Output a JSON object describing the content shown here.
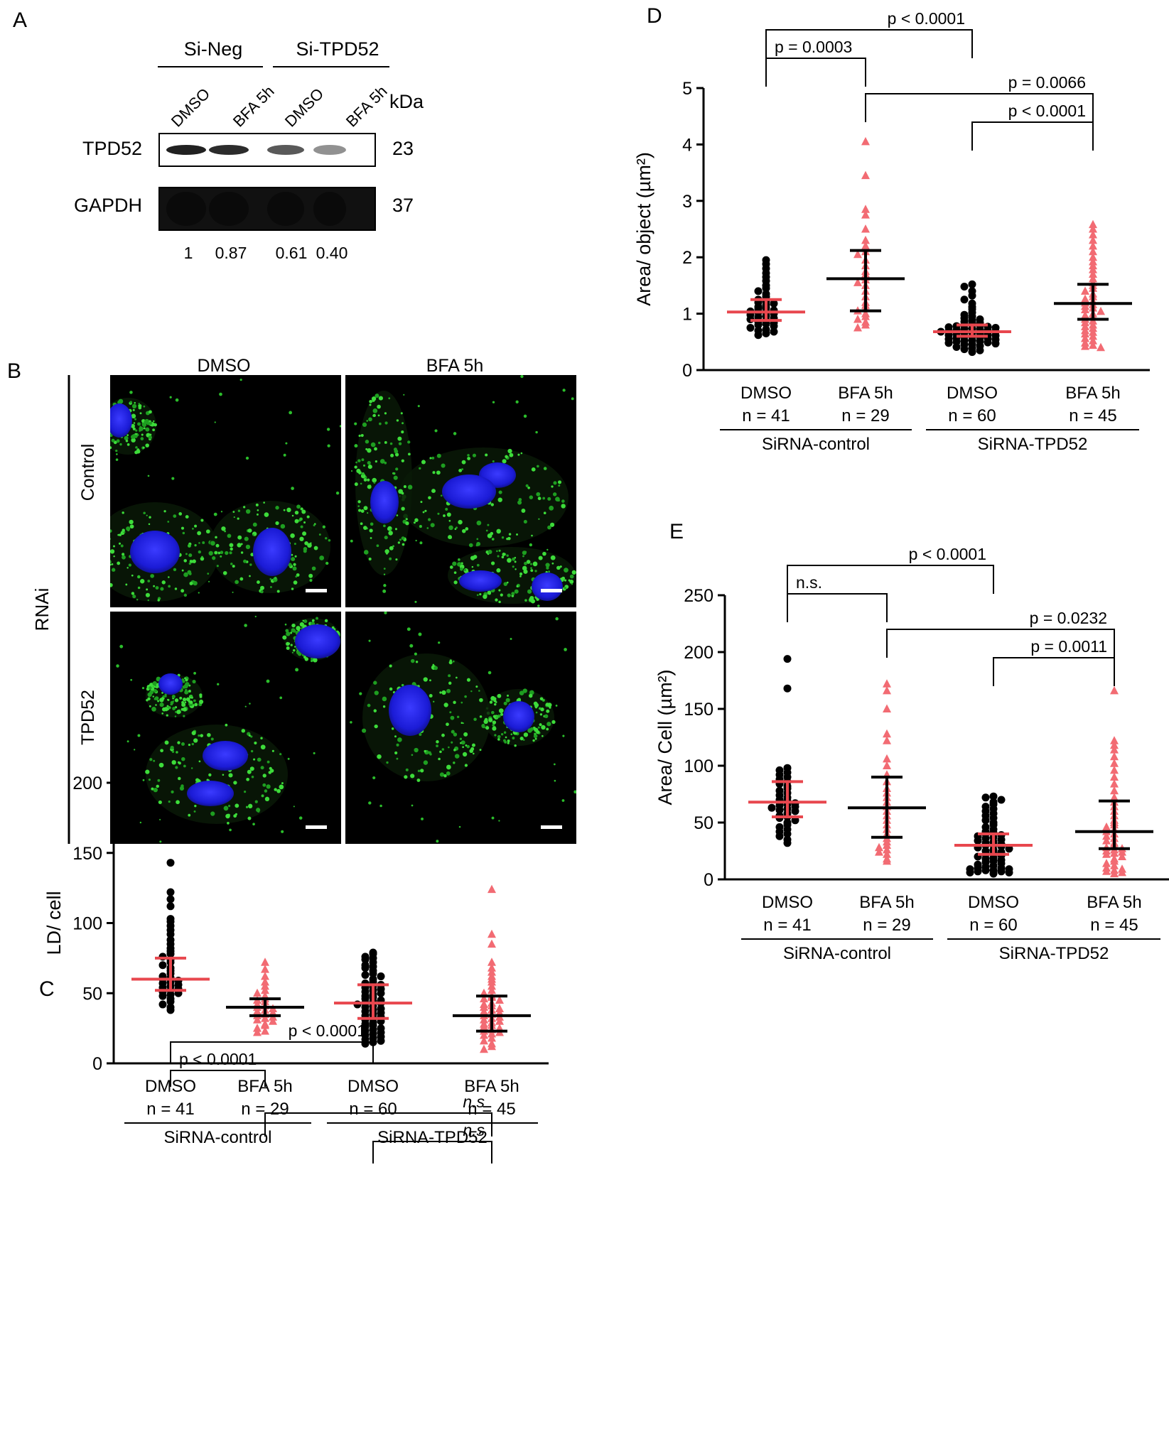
{
  "panels": {
    "A": {
      "letter": "A",
      "group_labels": [
        "Si-Neg",
        "Si-TPD52"
      ],
      "lane_labels": [
        "DMSO",
        "BFA 5h",
        "DMSO",
        "BFA 5h"
      ],
      "kda_label": "kDa",
      "blots": [
        {
          "protein": "TPD52",
          "kda": "23",
          "band_intensity": [
            0.9,
            0.85,
            0.65,
            0.4
          ]
        },
        {
          "protein": "GAPDH",
          "kda": "37",
          "band_intensity": [
            1,
            1,
            1,
            1
          ]
        }
      ],
      "quantification": [
        "1",
        "0.87",
        "0.61",
        "0.40"
      ]
    },
    "B": {
      "letter": "B",
      "col_labels": [
        "DMSO",
        "BFA 5h"
      ],
      "row_group_label": "RNAi",
      "row_labels": [
        "Control",
        "TPD52"
      ]
    }
  },
  "chart_data": [
    {
      "panel": "C",
      "type": "scatter",
      "ylabel": "LD/ cell",
      "ylim": [
        0,
        200
      ],
      "yticks": [
        0,
        50,
        100,
        150,
        200
      ],
      "categories": [
        {
          "label": "DMSO",
          "n": "n = 41",
          "color": "#000000",
          "marker": "circle",
          "median": 60,
          "q1": 52,
          "q3": 75,
          "bar_color": "#e8474e",
          "whisker_color": "#e8474e",
          "values": [
            143,
            122,
            117,
            112,
            103,
            101,
            98,
            95,
            92,
            88,
            85,
            82,
            80,
            78,
            76,
            74,
            72,
            70,
            68,
            66,
            64,
            62,
            61,
            60,
            59,
            58,
            57,
            56,
            55,
            54,
            53,
            52,
            51,
            50,
            49,
            48,
            46,
            44,
            42,
            40,
            38
          ]
        },
        {
          "label": "BFA 5h",
          "n": "n = 29",
          "color": "#f26b73",
          "marker": "triangle",
          "median": 40,
          "q1": 34,
          "q3": 46,
          "bar_color": "#000000",
          "whisker_color": "#000000",
          "values": [
            72,
            67,
            62,
            58,
            55,
            52,
            50,
            48,
            46,
            45,
            44,
            42,
            41,
            40,
            39,
            38,
            37,
            36,
            35,
            34,
            33,
            32,
            31,
            30,
            28,
            27,
            25,
            23,
            22
          ]
        },
        {
          "label": "DMSO",
          "n": "n = 60",
          "color": "#000000",
          "marker": "circle",
          "median": 43,
          "q1": 32,
          "q3": 56,
          "bar_color": "#e8474e",
          "whisker_color": "#e8474e",
          "values": [
            79,
            78,
            76,
            75,
            74,
            72,
            70,
            69,
            68,
            66,
            64,
            63,
            62,
            60,
            58,
            57,
            56,
            55,
            54,
            53,
            52,
            51,
            50,
            49,
            48,
            47,
            46,
            45,
            44,
            43,
            43,
            42,
            41,
            40,
            39,
            38,
            37,
            36,
            35,
            34,
            33,
            32,
            31,
            30,
            29,
            28,
            27,
            26,
            25,
            24,
            23,
            22,
            21,
            20,
            19,
            18,
            17,
            16,
            15,
            14
          ]
        },
        {
          "label": "BFA 5h",
          "n": "n = 45",
          "color": "#f26b73",
          "marker": "triangle",
          "median": 34,
          "q1": 23,
          "q3": 48,
          "bar_color": "#000000",
          "whisker_color": "#000000",
          "values": [
            124,
            92,
            85,
            72,
            68,
            65,
            62,
            60,
            58,
            55,
            52,
            50,
            48,
            47,
            46,
            45,
            43,
            42,
            41,
            40,
            39,
            38,
            37,
            36,
            35,
            34,
            33,
            32,
            31,
            30,
            29,
            28,
            27,
            26,
            25,
            24,
            23,
            22,
            21,
            20,
            18,
            16,
            14,
            12,
            10
          ]
        }
      ],
      "group_labels": [
        "SiRNA-control",
        "SiRNA-TPD52"
      ],
      "brackets": [
        {
          "from": 0,
          "to": 2,
          "level": 2,
          "label": "p < 0.0001"
        },
        {
          "from": 0,
          "to": 1,
          "level": 1,
          "label": "p < 0.0001"
        },
        {
          "from": 1,
          "to": 3,
          "level": 2,
          "label": "n.s"
        },
        {
          "from": 2,
          "to": 3,
          "level": 1,
          "label": "n.s"
        }
      ]
    },
    {
      "panel": "D",
      "type": "scatter",
      "ylabel": "Area/ object (µm²)",
      "ylim": [
        0,
        5
      ],
      "yticks": [
        0,
        1,
        2,
        3,
        4,
        5
      ],
      "categories": [
        {
          "label": "DMSO",
          "n": "n = 41",
          "color": "#000000",
          "marker": "circle",
          "median": 1.03,
          "q1": 0.88,
          "q3": 1.25,
          "bar_color": "#e8474e",
          "whisker_color": "#e8474e",
          "values": [
            1.95,
            1.88,
            1.8,
            1.72,
            1.65,
            1.58,
            1.5,
            1.45,
            1.4,
            1.35,
            1.3,
            1.25,
            1.22,
            1.2,
            1.18,
            1.15,
            1.12,
            1.1,
            1.08,
            1.06,
            1.04,
            1.03,
            1.02,
            1.0,
            0.98,
            0.96,
            0.94,
            0.92,
            0.9,
            0.88,
            0.86,
            0.84,
            0.82,
            0.8,
            0.78,
            0.75,
            0.72,
            0.7,
            0.68,
            0.65,
            0.62
          ]
        },
        {
          "label": "BFA 5h",
          "n": "n = 29",
          "color": "#f26b73",
          "marker": "triangle",
          "median": 1.62,
          "q1": 1.05,
          "q3": 2.12,
          "bar_color": "#000000",
          "whisker_color": "#000000",
          "values": [
            4.05,
            3.45,
            2.85,
            2.75,
            2.5,
            2.3,
            2.2,
            2.1,
            2.05,
            1.95,
            1.85,
            1.75,
            1.7,
            1.65,
            1.6,
            1.55,
            1.5,
            1.4,
            1.3,
            1.2,
            1.15,
            1.1,
            1.05,
            1.0,
            0.95,
            0.9,
            0.85,
            0.8,
            0.75
          ]
        },
        {
          "label": "DMSO",
          "n": "n = 60",
          "color": "#000000",
          "marker": "circle",
          "median": 0.68,
          "q1": 0.6,
          "q3": 0.8,
          "bar_color": "#e8474e",
          "whisker_color": "#e8474e",
          "values": [
            1.52,
            1.48,
            1.4,
            1.32,
            1.25,
            1.18,
            1.12,
            1.08,
            1.02,
            0.98,
            0.95,
            0.92,
            0.9,
            0.88,
            0.86,
            0.84,
            0.82,
            0.8,
            0.79,
            0.78,
            0.77,
            0.76,
            0.75,
            0.74,
            0.73,
            0.72,
            0.71,
            0.7,
            0.69,
            0.68,
            0.68,
            0.67,
            0.66,
            0.65,
            0.64,
            0.63,
            0.62,
            0.61,
            0.6,
            0.59,
            0.58,
            0.57,
            0.56,
            0.55,
            0.54,
            0.53,
            0.52,
            0.51,
            0.5,
            0.49,
            0.48,
            0.47,
            0.46,
            0.45,
            0.43,
            0.41,
            0.39,
            0.37,
            0.35,
            0.32
          ]
        },
        {
          "label": "BFA 5h",
          "n": "n = 45",
          "color": "#f26b73",
          "marker": "triangle",
          "median": 1.18,
          "q1": 0.9,
          "q3": 1.52,
          "bar_color": "#000000",
          "whisker_color": "#000000",
          "values": [
            2.58,
            2.5,
            2.4,
            2.3,
            2.2,
            2.1,
            2.0,
            1.92,
            1.85,
            1.78,
            1.7,
            1.62,
            1.55,
            1.5,
            1.45,
            1.4,
            1.35,
            1.3,
            1.26,
            1.22,
            1.19,
            1.16,
            1.13,
            1.1,
            1.07,
            1.04,
            1.0,
            0.97,
            0.94,
            0.9,
            0.87,
            0.84,
            0.8,
            0.77,
            0.74,
            0.7,
            0.67,
            0.64,
            0.6,
            0.56,
            0.52,
            0.48,
            0.44,
            0.42,
            0.4
          ]
        }
      ],
      "group_labels": [
        "SiRNA-control",
        "SiRNA-TPD52"
      ],
      "brackets": [
        {
          "from": 0,
          "to": 2,
          "level": 2,
          "label": "p < 0.0001"
        },
        {
          "from": 0,
          "to": 1,
          "level": 1,
          "label": "p = 0.0003"
        },
        {
          "from": 1,
          "to": 3,
          "level": 2,
          "label": "p = 0.0066"
        },
        {
          "from": 2,
          "to": 3,
          "level": 1,
          "label": "p < 0.0001"
        }
      ]
    },
    {
      "panel": "E",
      "type": "scatter",
      "ylabel": "Area/ Cell (µm²)",
      "ylim": [
        0,
        250
      ],
      "yticks": [
        0,
        50,
        100,
        150,
        200,
        250
      ],
      "categories": [
        {
          "label": "DMSO",
          "n": "n = 41",
          "color": "#000000",
          "marker": "circle",
          "median": 68,
          "q1": 55,
          "q3": 86,
          "bar_color": "#e8474e",
          "whisker_color": "#e8474e",
          "values": [
            194,
            168,
            98,
            96,
            94,
            92,
            90,
            88,
            86,
            84,
            82,
            80,
            78,
            76,
            74,
            72,
            70,
            69,
            68,
            67,
            66,
            65,
            64,
            63,
            62,
            61,
            60,
            58,
            56,
            55,
            54,
            52,
            50,
            48,
            46,
            44,
            42,
            40,
            38,
            35,
            32
          ]
        },
        {
          "label": "BFA 5h",
          "n": "n = 29",
          "color": "#f26b73",
          "marker": "triangle",
          "median": 63,
          "q1": 37,
          "q3": 90,
          "bar_color": "#000000",
          "whisker_color": "#000000",
          "values": [
            172,
            166,
            150,
            128,
            122,
            106,
            100,
            92,
            86,
            80,
            76,
            72,
            68,
            64,
            60,
            56,
            52,
            48,
            44,
            40,
            36,
            33,
            30,
            28,
            26,
            24,
            22,
            18,
            16
          ]
        },
        {
          "label": "DMSO",
          "n": "n = 60",
          "color": "#000000",
          "marker": "circle",
          "median": 30,
          "q1": 22,
          "q3": 40,
          "bar_color": "#e8474e",
          "whisker_color": "#e8474e",
          "values": [
            73,
            72,
            70,
            68,
            66,
            64,
            62,
            60,
            58,
            56,
            54,
            52,
            50,
            48,
            46,
            44,
            42,
            41,
            40,
            39,
            38,
            37,
            36,
            35,
            34,
            33,
            32,
            31,
            30,
            30,
            29,
            28,
            27,
            26,
            25,
            24,
            23,
            22,
            21,
            20,
            19,
            18,
            17,
            16,
            15,
            14,
            13,
            12,
            11,
            10,
            10,
            9,
            9,
            8,
            8,
            7,
            7,
            6,
            6,
            5
          ]
        },
        {
          "label": "BFA 5h",
          "n": "n = 45",
          "color": "#f26b73",
          "marker": "triangle",
          "median": 42,
          "q1": 27,
          "q3": 69,
          "bar_color": "#000000",
          "whisker_color": "#000000",
          "values": [
            166,
            122,
            118,
            114,
            108,
            102,
            96,
            90,
            84,
            78,
            72,
            68,
            64,
            60,
            56,
            52,
            50,
            48,
            46,
            44,
            42,
            40,
            38,
            36,
            34,
            32,
            30,
            28,
            27,
            26,
            25,
            24,
            23,
            22,
            20,
            18,
            16,
            14,
            12,
            10,
            9,
            8,
            7,
            6,
            5
          ]
        }
      ],
      "group_labels": [
        "SiRNA-control",
        "SiRNA-TPD52"
      ],
      "brackets": [
        {
          "from": 0,
          "to": 2,
          "level": 2,
          "label": "p < 0.0001"
        },
        {
          "from": 0,
          "to": 1,
          "level": 1,
          "label": "n.s."
        },
        {
          "from": 1,
          "to": 3,
          "level": 2,
          "label": "p = 0.0232"
        },
        {
          "from": 2,
          "to": 3,
          "level": 1,
          "label": "p = 0.0011"
        }
      ]
    }
  ]
}
